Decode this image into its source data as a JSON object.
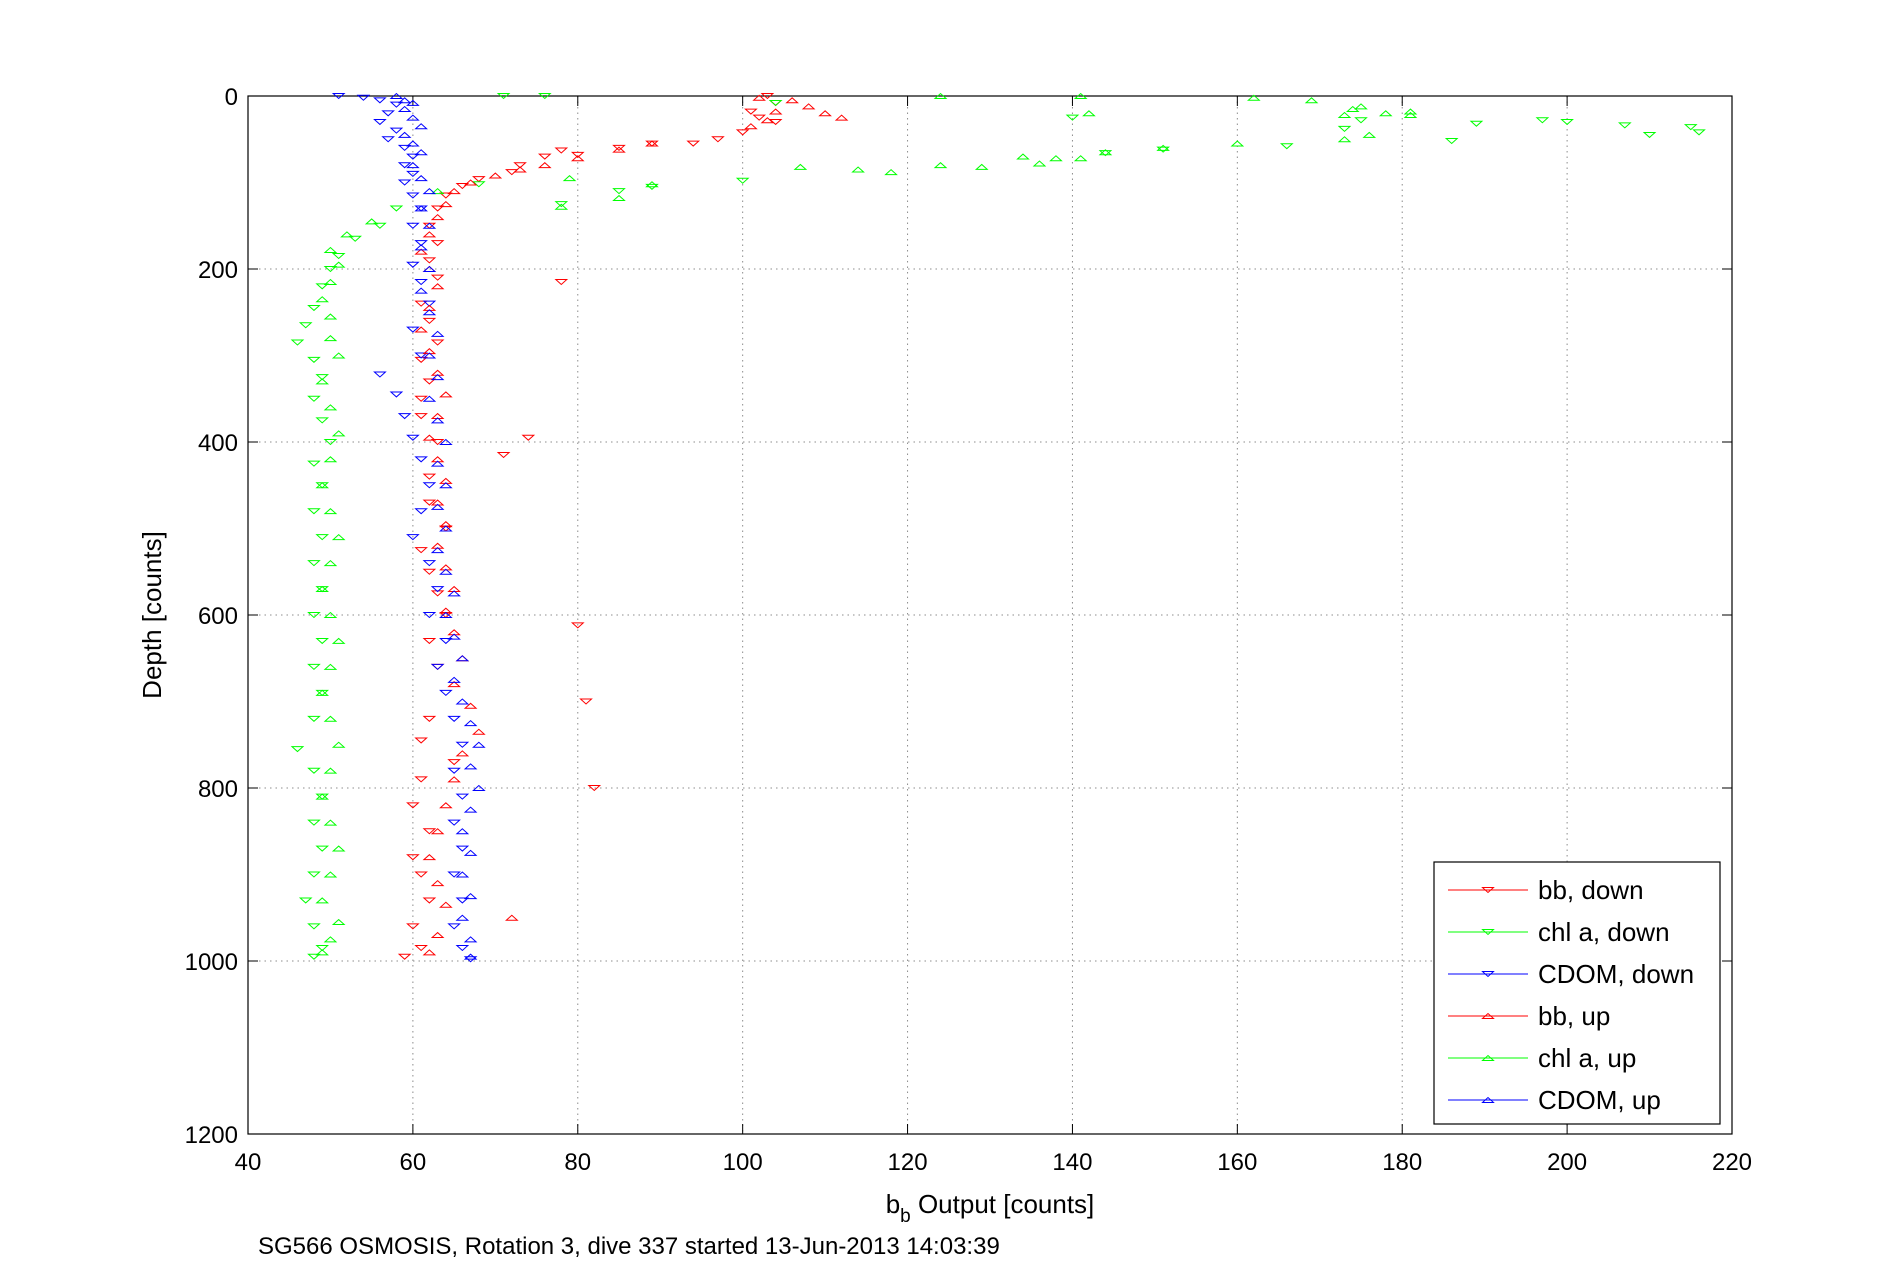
{
  "chart_data": {
    "type": "scatter",
    "title": "",
    "xlabel_main": "b",
    "xlabel_sub": "b",
    "xlabel_rest": " Output [counts]",
    "ylabel": "Depth [counts]",
    "caption": "SG566 OSMOSIS, Rotation 3, dive 337 started 13-Jun-2013 14:03:39",
    "xlim": [
      40,
      220
    ],
    "ylim": [
      0,
      1200
    ],
    "y_reversed": true,
    "grid": true,
    "xticks": [
      "40",
      "60",
      "80",
      "100",
      "120",
      "140",
      "160",
      "180",
      "200",
      "220"
    ],
    "yticks": [
      "0",
      "200",
      "400",
      "600",
      "800",
      "1000",
      "1200"
    ],
    "legend_position": "bottom-right",
    "series": [
      {
        "name": "bb, down",
        "color": "#ff0000",
        "marker": "triangle-down",
        "points": [
          [
            103,
            0
          ],
          [
            104,
            8
          ],
          [
            101,
            18
          ],
          [
            102,
            25
          ],
          [
            104,
            30
          ],
          [
            100,
            42
          ],
          [
            97,
            50
          ],
          [
            94,
            55
          ],
          [
            89,
            55
          ],
          [
            85,
            60
          ],
          [
            80,
            68
          ],
          [
            78,
            63
          ],
          [
            76,
            70
          ],
          [
            73,
            80
          ],
          [
            72,
            88
          ],
          [
            68,
            96
          ],
          [
            66,
            104
          ],
          [
            64,
            115
          ],
          [
            63,
            130
          ],
          [
            62,
            150
          ],
          [
            63,
            170
          ],
          [
            62,
            190
          ],
          [
            63,
            210
          ],
          [
            78,
            215
          ],
          [
            61,
            240
          ],
          [
            62,
            260
          ],
          [
            63,
            285
          ],
          [
            61,
            305
          ],
          [
            62,
            330
          ],
          [
            61,
            350
          ],
          [
            61,
            370
          ],
          [
            74,
            395
          ],
          [
            63,
            400
          ],
          [
            71,
            415
          ],
          [
            62,
            440
          ],
          [
            62,
            470
          ],
          [
            64,
            500
          ],
          [
            61,
            525
          ],
          [
            62,
            550
          ],
          [
            63,
            575
          ],
          [
            64,
            600
          ],
          [
            80,
            612
          ],
          [
            62,
            630
          ],
          [
            63,
            660
          ],
          [
            81,
            700
          ],
          [
            62,
            720
          ],
          [
            61,
            745
          ],
          [
            65,
            770
          ],
          [
            61,
            790
          ],
          [
            82,
            800
          ],
          [
            60,
            820
          ],
          [
            62,
            850
          ],
          [
            60,
            880
          ],
          [
            61,
            900
          ],
          [
            62,
            930
          ],
          [
            60,
            960
          ],
          [
            61,
            985
          ],
          [
            59,
            995
          ]
        ]
      },
      {
        "name": "chl a, down",
        "color": "#00ff00",
        "marker": "triangle-down",
        "points": [
          [
            71,
            0
          ],
          [
            76,
            0
          ],
          [
            104,
            8
          ],
          [
            173,
            38
          ],
          [
            175,
            28
          ],
          [
            189,
            32
          ],
          [
            197,
            28
          ],
          [
            200,
            30
          ],
          [
            207,
            34
          ],
          [
            210,
            45
          ],
          [
            215,
            36
          ],
          [
            216,
            42
          ],
          [
            186,
            52
          ],
          [
            166,
            58
          ],
          [
            140,
            25
          ],
          [
            151,
            62
          ],
          [
            144,
            66
          ],
          [
            100,
            98
          ],
          [
            89,
            105
          ],
          [
            85,
            110
          ],
          [
            78,
            125
          ],
          [
            68,
            102
          ],
          [
            58,
            130
          ],
          [
            56,
            150
          ],
          [
            53,
            165
          ],
          [
            51,
            185
          ],
          [
            50,
            200
          ],
          [
            49,
            220
          ],
          [
            48,
            245
          ],
          [
            47,
            265
          ],
          [
            46,
            285
          ],
          [
            48,
            305
          ],
          [
            49,
            325
          ],
          [
            48,
            350
          ],
          [
            49,
            375
          ],
          [
            50,
            400
          ],
          [
            48,
            425
          ],
          [
            49,
            450
          ],
          [
            48,
            480
          ],
          [
            49,
            510
          ],
          [
            48,
            540
          ],
          [
            49,
            570
          ],
          [
            48,
            600
          ],
          [
            49,
            630
          ],
          [
            48,
            660
          ],
          [
            49,
            690
          ],
          [
            48,
            720
          ],
          [
            46,
            755
          ],
          [
            48,
            780
          ],
          [
            49,
            810
          ],
          [
            48,
            840
          ],
          [
            49,
            870
          ],
          [
            48,
            900
          ],
          [
            47,
            930
          ],
          [
            48,
            960
          ],
          [
            49,
            985
          ],
          [
            48,
            995
          ]
        ]
      },
      {
        "name": "CDOM, down",
        "color": "#0000ff",
        "marker": "triangle-down",
        "points": [
          [
            51,
            0
          ],
          [
            54,
            2
          ],
          [
            56,
            5
          ],
          [
            58,
            10
          ],
          [
            57,
            20
          ],
          [
            56,
            30
          ],
          [
            58,
            40
          ],
          [
            57,
            50
          ],
          [
            59,
            60
          ],
          [
            60,
            70
          ],
          [
            59,
            80
          ],
          [
            60,
            90
          ],
          [
            59,
            100
          ],
          [
            60,
            115
          ],
          [
            61,
            130
          ],
          [
            60,
            150
          ],
          [
            61,
            170
          ],
          [
            60,
            195
          ],
          [
            61,
            215
          ],
          [
            62,
            240
          ],
          [
            60,
            270
          ],
          [
            61,
            300
          ],
          [
            56,
            322
          ],
          [
            58,
            345
          ],
          [
            59,
            370
          ],
          [
            60,
            395
          ],
          [
            61,
            420
          ],
          [
            62,
            450
          ],
          [
            61,
            480
          ],
          [
            60,
            510
          ],
          [
            62,
            540
          ],
          [
            63,
            570
          ],
          [
            62,
            600
          ],
          [
            64,
            630
          ],
          [
            63,
            660
          ],
          [
            64,
            690
          ],
          [
            65,
            720
          ],
          [
            66,
            750
          ],
          [
            65,
            780
          ],
          [
            66,
            810
          ],
          [
            65,
            840
          ],
          [
            66,
            870
          ],
          [
            65,
            900
          ],
          [
            66,
            930
          ],
          [
            65,
            960
          ],
          [
            66,
            985
          ],
          [
            67,
            998
          ]
        ]
      },
      {
        "name": "bb, up",
        "color": "#ff0000",
        "marker": "triangle-up",
        "points": [
          [
            102,
            2
          ],
          [
            106,
            5
          ],
          [
            108,
            12
          ],
          [
            104,
            18
          ],
          [
            110,
            20
          ],
          [
            112,
            25
          ],
          [
            103,
            28
          ],
          [
            101,
            35
          ],
          [
            89,
            55
          ],
          [
            85,
            62
          ],
          [
            80,
            72
          ],
          [
            76,
            80
          ],
          [
            73,
            85
          ],
          [
            70,
            92
          ],
          [
            67,
            100
          ],
          [
            65,
            110
          ],
          [
            64,
            125
          ],
          [
            63,
            140
          ],
          [
            62,
            160
          ],
          [
            61,
            180
          ],
          [
            62,
            200
          ],
          [
            63,
            220
          ],
          [
            62,
            245
          ],
          [
            61,
            270
          ],
          [
            62,
            295
          ],
          [
            63,
            320
          ],
          [
            64,
            345
          ],
          [
            63,
            370
          ],
          [
            62,
            395
          ],
          [
            63,
            420
          ],
          [
            64,
            445
          ],
          [
            63,
            470
          ],
          [
            64,
            495
          ],
          [
            63,
            520
          ],
          [
            64,
            545
          ],
          [
            65,
            570
          ],
          [
            64,
            595
          ],
          [
            65,
            620
          ],
          [
            66,
            650
          ],
          [
            65,
            680
          ],
          [
            67,
            705
          ],
          [
            68,
            735
          ],
          [
            66,
            760
          ],
          [
            65,
            790
          ],
          [
            64,
            820
          ],
          [
            63,
            850
          ],
          [
            62,
            880
          ],
          [
            63,
            910
          ],
          [
            64,
            935
          ],
          [
            72,
            950
          ],
          [
            63,
            970
          ],
          [
            62,
            990
          ]
        ]
      },
      {
        "name": "chl a, up",
        "color": "#00ff00",
        "marker": "triangle-up",
        "points": [
          [
            124,
            0
          ],
          [
            141,
            0
          ],
          [
            162,
            2
          ],
          [
            169,
            5
          ],
          [
            174,
            15
          ],
          [
            175,
            12
          ],
          [
            178,
            20
          ],
          [
            181,
            22
          ],
          [
            173,
            22
          ],
          [
            181,
            18
          ],
          [
            142,
            20
          ],
          [
            160,
            55
          ],
          [
            176,
            45
          ],
          [
            173,
            50
          ],
          [
            151,
            60
          ],
          [
            144,
            65
          ],
          [
            141,
            72
          ],
          [
            138,
            72
          ],
          [
            136,
            78
          ],
          [
            134,
            70
          ],
          [
            129,
            82
          ],
          [
            124,
            80
          ],
          [
            118,
            88
          ],
          [
            114,
            85
          ],
          [
            107,
            82
          ],
          [
            89,
            102
          ],
          [
            85,
            118
          ],
          [
            79,
            95
          ],
          [
            78,
            128
          ],
          [
            63,
            110
          ],
          [
            55,
            145
          ],
          [
            52,
            160
          ],
          [
            50,
            178
          ],
          [
            51,
            195
          ],
          [
            50,
            215
          ],
          [
            49,
            235
          ],
          [
            50,
            255
          ],
          [
            50,
            280
          ],
          [
            51,
            300
          ],
          [
            49,
            330
          ],
          [
            50,
            360
          ],
          [
            51,
            390
          ],
          [
            50,
            420
          ],
          [
            49,
            450
          ],
          [
            50,
            480
          ],
          [
            51,
            510
          ],
          [
            50,
            540
          ],
          [
            49,
            570
          ],
          [
            50,
            600
          ],
          [
            51,
            630
          ],
          [
            50,
            660
          ],
          [
            49,
            690
          ],
          [
            50,
            720
          ],
          [
            51,
            750
          ],
          [
            50,
            780
          ],
          [
            49,
            810
          ],
          [
            50,
            840
          ],
          [
            51,
            870
          ],
          [
            50,
            900
          ],
          [
            49,
            930
          ],
          [
            51,
            955
          ],
          [
            50,
            975
          ],
          [
            49,
            990
          ]
        ]
      },
      {
        "name": "CDOM, up",
        "color": "#0000ff",
        "marker": "triangle-up",
        "points": [
          [
            58,
            0
          ],
          [
            59,
            5
          ],
          [
            60,
            8
          ],
          [
            59,
            15
          ],
          [
            60,
            25
          ],
          [
            61,
            35
          ],
          [
            59,
            45
          ],
          [
            60,
            55
          ],
          [
            61,
            65
          ],
          [
            60,
            80
          ],
          [
            61,
            95
          ],
          [
            62,
            110
          ],
          [
            61,
            130
          ],
          [
            62,
            150
          ],
          [
            61,
            175
          ],
          [
            62,
            200
          ],
          [
            61,
            225
          ],
          [
            62,
            250
          ],
          [
            63,
            275
          ],
          [
            62,
            300
          ],
          [
            63,
            325
          ],
          [
            62,
            350
          ],
          [
            63,
            375
          ],
          [
            64,
            400
          ],
          [
            63,
            425
          ],
          [
            64,
            450
          ],
          [
            63,
            475
          ],
          [
            64,
            500
          ],
          [
            63,
            525
          ],
          [
            64,
            550
          ],
          [
            65,
            575
          ],
          [
            64,
            600
          ],
          [
            65,
            625
          ],
          [
            66,
            650
          ],
          [
            65,
            675
          ],
          [
            66,
            700
          ],
          [
            67,
            725
          ],
          [
            68,
            750
          ],
          [
            67,
            775
          ],
          [
            68,
            800
          ],
          [
            67,
            825
          ],
          [
            66,
            850
          ],
          [
            67,
            875
          ],
          [
            66,
            900
          ],
          [
            67,
            925
          ],
          [
            66,
            950
          ],
          [
            67,
            975
          ],
          [
            67,
            995
          ]
        ]
      }
    ]
  }
}
